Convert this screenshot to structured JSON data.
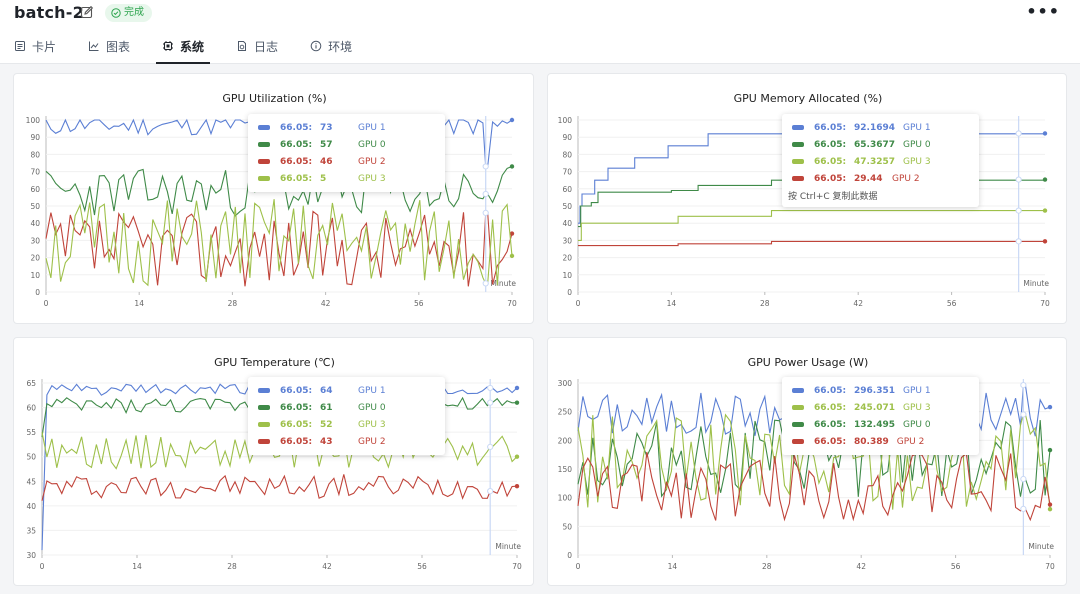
{
  "header": {
    "title": "batch-2",
    "status": "完成",
    "more_label": "•••",
    "tabs": [
      {
        "label": "卡片",
        "icon": "card-icon"
      },
      {
        "label": "图表",
        "icon": "line-chart-icon"
      },
      {
        "label": "系统",
        "icon": "cpu-icon",
        "active": true
      },
      {
        "label": "日志",
        "icon": "log-icon"
      },
      {
        "label": "环境",
        "icon": "info-icon"
      }
    ]
  },
  "colors": {
    "gpu1": "#5b7fd4",
    "gpu0": "#3f8a48",
    "gpu2": "#c0443a",
    "gpu3": "#9ec04a",
    "status": "#2da44e"
  },
  "charts": [
    {
      "title": "GPU Utilization (%)",
      "tooltip": {
        "time": "66.05:",
        "rows": [
          {
            "value": "73",
            "name": "GPU 1",
            "color": "#5b7fd4"
          },
          {
            "value": "57",
            "name": "GPU 0",
            "color": "#3f8a48"
          },
          {
            "value": "46",
            "name": "GPU 2",
            "color": "#c0443a"
          },
          {
            "value": "5",
            "name": "GPU 3",
            "color": "#9ec04a"
          }
        ]
      }
    },
    {
      "title": "GPU Memory Allocated (%)",
      "tooltip": {
        "time": "66.05:",
        "rows": [
          {
            "value": "92.1694",
            "name": "GPU 1",
            "color": "#5b7fd4"
          },
          {
            "value": "65.3677",
            "name": "GPU 0",
            "color": "#3f8a48"
          },
          {
            "value": "47.3257",
            "name": "GPU 3",
            "color": "#9ec04a"
          },
          {
            "value": "29.44",
            "name": "GPU 2",
            "color": "#c0443a"
          }
        ],
        "hint": "按 Ctrl+C 复制此数据"
      }
    },
    {
      "title": "GPU Temperature (℃)",
      "tooltip": {
        "time": "66.05:",
        "rows": [
          {
            "value": "64",
            "name": "GPU 1",
            "color": "#5b7fd4"
          },
          {
            "value": "61",
            "name": "GPU 0",
            "color": "#3f8a48"
          },
          {
            "value": "52",
            "name": "GPU 3",
            "color": "#9ec04a"
          },
          {
            "value": "43",
            "name": "GPU 2",
            "color": "#c0443a"
          }
        ]
      }
    },
    {
      "title": "GPU Power Usage (W)",
      "tooltip": {
        "time": "66.05:",
        "rows": [
          {
            "value": "296.351",
            "name": "GPU 1",
            "color": "#5b7fd4"
          },
          {
            "value": "245.071",
            "name": "GPU 3",
            "color": "#9ec04a"
          },
          {
            "value": "132.495",
            "name": "GPU 0",
            "color": "#3f8a48"
          },
          {
            "value": "80.389",
            "name": "GPU 2",
            "color": "#c0443a"
          }
        ]
      }
    }
  ],
  "chart_data": [
    {
      "type": "line",
      "title": "GPU Utilization (%)",
      "xlabel": "Minute",
      "xlim": [
        0,
        70
      ],
      "xticks": [
        0,
        14,
        28,
        42,
        56,
        70
      ],
      "ylim": [
        0,
        100
      ],
      "yticks": [
        0,
        10,
        20,
        30,
        40,
        50,
        60,
        70,
        80,
        90,
        100
      ],
      "cursor_x": 66.05,
      "series": [
        {
          "name": "GPU 1",
          "color": "#5b7fd4",
          "base": 97,
          "amp": 6,
          "seed": 11,
          "end": 100,
          "cursor_val": 73
        },
        {
          "name": "GPU 0",
          "color": "#3f8a48",
          "base": 58,
          "amp": 14,
          "seed": 23,
          "end": 73,
          "cursor_val": 57
        },
        {
          "name": "GPU 2",
          "color": "#c0443a",
          "base": 25,
          "amp": 22,
          "seed": 37,
          "end": 34,
          "cursor_val": 46
        },
        {
          "name": "GPU 3",
          "color": "#9ec04a",
          "base": 28,
          "amp": 26,
          "seed": 51,
          "end": 21,
          "cursor_val": 5
        }
      ]
    },
    {
      "type": "line",
      "title": "GPU Memory Allocated (%)",
      "xlabel": "Minute",
      "xlim": [
        0,
        70
      ],
      "xticks": [
        0,
        14,
        28,
        42,
        56,
        70
      ],
      "ylim": [
        0,
        100
      ],
      "yticks": [
        0,
        10,
        20,
        30,
        40,
        50,
        60,
        70,
        80,
        90,
        100
      ],
      "cursor_x": 66.05,
      "series": [
        {
          "name": "GPU 1",
          "color": "#5b7fd4",
          "steps": [
            [
              0,
              40
            ],
            [
              0.3,
              50
            ],
            [
              0.6,
              57
            ],
            [
              2,
              57
            ],
            [
              2.5,
              65
            ],
            [
              4,
              65
            ],
            [
              4.5,
              72
            ],
            [
              8,
              72
            ],
            [
              8.5,
              78
            ],
            [
              13,
              78
            ],
            [
              13.5,
              85
            ],
            [
              19,
              85
            ],
            [
              19.5,
              92
            ],
            [
              70,
              92.17
            ]
          ],
          "cursor_val": 92.1694
        },
        {
          "name": "GPU 0",
          "color": "#3f8a48",
          "steps": [
            [
              0,
              38
            ],
            [
              0.4,
              50
            ],
            [
              2,
              52
            ],
            [
              3,
              58
            ],
            [
              13,
              58
            ],
            [
              14,
              59
            ],
            [
              18,
              62
            ],
            [
              28,
              62
            ],
            [
              29,
              65
            ],
            [
              70,
              65.37
            ]
          ],
          "cursor_val": 65.3677
        },
        {
          "name": "GPU 3",
          "color": "#9ec04a",
          "steps": [
            [
              0,
              30
            ],
            [
              0.5,
              40
            ],
            [
              14,
              40
            ],
            [
              15,
              44
            ],
            [
              28,
              44
            ],
            [
              29,
              47.3
            ],
            [
              70,
              47.33
            ]
          ],
          "cursor_val": 47.3257
        },
        {
          "name": "GPU 2",
          "color": "#c0443a",
          "steps": [
            [
              0,
              27
            ],
            [
              14,
              27
            ],
            [
              15,
              28
            ],
            [
              28,
              28
            ],
            [
              29,
              29.44
            ],
            [
              70,
              29.44
            ]
          ],
          "cursor_val": 29.44
        }
      ]
    },
    {
      "type": "line",
      "title": "GPU Temperature (℃)",
      "xlabel": "Minute",
      "xlim": [
        0,
        70
      ],
      "xticks": [
        0,
        14,
        28,
        42,
        56,
        70
      ],
      "ylim": [
        30,
        65
      ],
      "yticks": [
        30,
        35,
        40,
        45,
        50,
        55,
        60,
        65
      ],
      "cursor_x": 66.05,
      "series": [
        {
          "name": "GPU 1",
          "color": "#5b7fd4",
          "base": 63.6,
          "amp": 1.2,
          "seed": 61,
          "end": 64,
          "start": 31,
          "cursor_val": 64
        },
        {
          "name": "GPU 0",
          "color": "#3f8a48",
          "base": 60.4,
          "amp": 1.6,
          "seed": 73,
          "end": 61,
          "start": 54,
          "cursor_val": 61
        },
        {
          "name": "GPU 3",
          "color": "#9ec04a",
          "base": 51,
          "amp": 3.5,
          "seed": 89,
          "end": 50,
          "start": 55,
          "cursor_val": 52
        },
        {
          "name": "GPU 2",
          "color": "#c0443a",
          "base": 44,
          "amp": 2.5,
          "seed": 97,
          "end": 44,
          "start": 41,
          "cursor_val": 43
        }
      ]
    },
    {
      "type": "line",
      "title": "GPU Power Usage (W)",
      "xlabel": "Minute",
      "xlim": [
        0,
        70
      ],
      "xticks": [
        0,
        14,
        28,
        42,
        56,
        70
      ],
      "ylim": [
        0,
        300
      ],
      "yticks": [
        0,
        50,
        100,
        150,
        200,
        250,
        300
      ],
      "cursor_x": 66.05,
      "series": [
        {
          "name": "GPU 1",
          "color": "#5b7fd4",
          "base": 245,
          "amp": 40,
          "seed": 101,
          "end": 258,
          "cursor_val": 296.351
        },
        {
          "name": "GPU 0",
          "color": "#3f8a48",
          "base": 170,
          "amp": 70,
          "seed": 113,
          "end": 183,
          "cursor_val": 132.495
        },
        {
          "name": "GPU 3",
          "color": "#9ec04a",
          "base": 160,
          "amp": 85,
          "seed": 127,
          "end": 80,
          "cursor_val": 245.071
        },
        {
          "name": "GPU 2",
          "color": "#c0443a",
          "base": 120,
          "amp": 60,
          "seed": 131,
          "end": 88,
          "cursor_val": 80.389
        }
      ]
    }
  ]
}
